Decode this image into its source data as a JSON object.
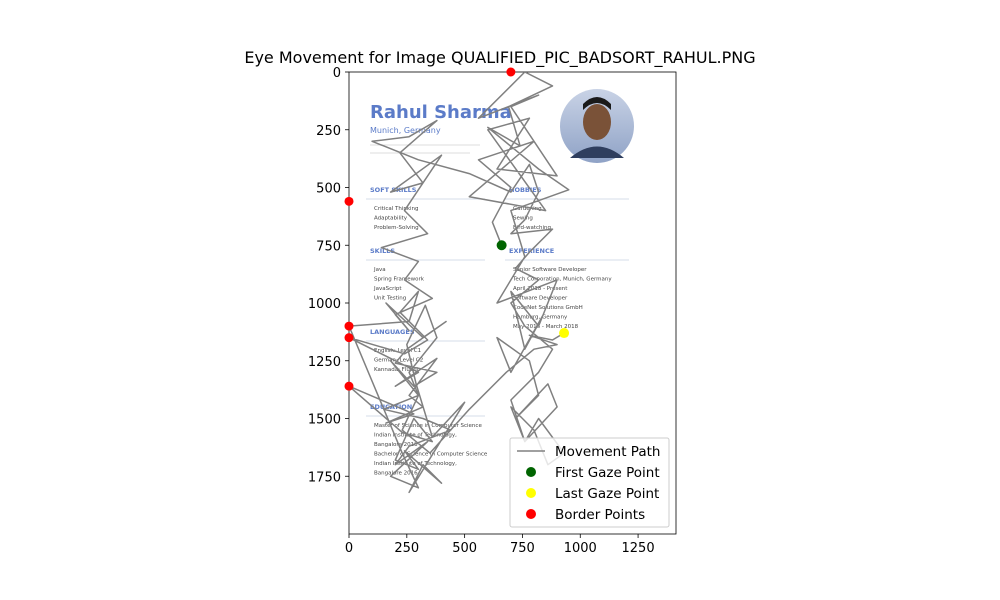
{
  "chart_data": {
    "type": "scatter",
    "title": "Eye Movement for Image QUALIFIED_PIC_BADSORT_RAHUL.PNG",
    "xlabel": "",
    "ylabel": "",
    "xlim": [
      0,
      1414
    ],
    "ylim": [
      2000,
      0
    ],
    "x_ticks": [
      0,
      250,
      500,
      750,
      1000,
      1250
    ],
    "y_ticks": [
      0,
      250,
      500,
      750,
      1000,
      1250,
      1500,
      1750
    ],
    "grid": false,
    "legend_position": "bottom-right",
    "background_image": {
      "description_name": "resume-image",
      "extent": [
        0,
        1414,
        2000,
        0
      ],
      "name": "Rahul Sharma",
      "location": "Munich, Germany",
      "sections": [
        {
          "title": "SOFT SKILLS",
          "items": [
            "Critical Thinking",
            "Adaptability",
            "Problem-Solving"
          ]
        },
        {
          "title": "SKILLS",
          "items": [
            "Java",
            "Spring Framework",
            "JavaScript",
            "Unit Testing"
          ]
        },
        {
          "title": "LANGUAGES",
          "items": [
            "English: Level C1",
            "German: Level C2",
            "Kannada: Fluent"
          ]
        },
        {
          "title": "EDUCATION",
          "items": [
            "Master of Science in Computer Science",
            "Indian Institute of Technology,",
            "Bangalore 2018",
            "Bachelor of Science in Computer Science",
            "Indian Institute of Technology,",
            "Bangalore 2016"
          ]
        },
        {
          "title": "HOBBIES",
          "items": [
            "Gardening",
            "Sewing",
            "Bird-watching"
          ]
        },
        {
          "title": "EXPERIENCE",
          "items": [
            "Senior Software Developer",
            "Tech Corporation, Munich, Germany",
            "April 2018 - Present",
            "Software Developer",
            "CodeNet Solutions GmbH",
            "Hamburg, Germany",
            "May 2016 - March 2018"
          ]
        }
      ]
    },
    "series": [
      {
        "name": "Movement Path",
        "color": "#808080",
        "x": [
          660,
          620,
          700,
          560,
          800,
          520,
          850,
          600,
          780,
          640,
          900,
          700,
          820,
          560,
          760,
          880,
          690,
          740,
          600,
          820,
          950,
          700,
          760,
          640,
          900,
          820,
          700,
          760,
          840,
          700,
          640,
          780,
          820,
          720,
          860,
          900,
          760,
          700,
          800,
          860,
          930,
          820,
          760,
          700,
          820,
          880,
          760,
          700,
          820,
          720,
          780,
          880,
          700,
          760,
          820,
          780,
          700,
          520,
          300,
          100,
          260,
          380,
          220,
          320,
          180,
          400,
          240,
          340,
          140,
          300,
          240,
          360,
          200,
          260,
          160,
          320,
          420,
          250,
          200,
          380,
          280,
          180,
          300,
          150,
          320,
          440,
          260,
          200,
          340,
          180,
          300,
          230,
          0,
          260,
          300,
          220,
          340,
          240,
          0,
          300,
          200,
          380,
          260,
          320,
          160,
          280,
          0,
          230,
          360,
          280,
          200,
          300,
          240,
          400,
          320,
          260,
          500,
          360,
          290,
          250,
          330,
          380,
          260,
          300,
          230,
          350,
          520,
          680,
          800,
          900,
          780,
          880,
          930
        ],
        "y": [
          750,
          650,
          500,
          380,
          300,
          540,
          600,
          250,
          200,
          420,
          450,
          150,
          100,
          200,
          0,
          60,
          150,
          320,
          240,
          420,
          510,
          600,
          800,
          1000,
          900,
          1100,
          950,
          1200,
          1050,
          1300,
          1150,
          1250,
          1400,
          1500,
          1350,
          1450,
          1600,
          1450,
          1550,
          1700,
          1650,
          1500,
          1600,
          1420,
          1300,
          1200,
          1100,
          1000,
          900,
          850,
          780,
          680,
          700,
          640,
          520,
          400,
          520,
          440,
          380,
          300,
          280,
          210,
          350,
          480,
          520,
          360,
          600,
          700,
          760,
          820,
          900,
          980,
          1050,
          1120,
          1000,
          1150,
          1080,
          1200,
          1260,
          1300,
          1360,
          1250,
          1400,
          1460,
          1500,
          1550,
          1620,
          1700,
          1600,
          1750,
          1800,
          1650,
          1100,
          1080,
          950,
          1040,
          1160,
          1220,
          1150,
          1300,
          1360,
          1240,
          1400,
          1450,
          1520,
          1480,
          1360,
          1560,
          1600,
          1500,
          1680,
          1720,
          1640,
          1780,
          1700,
          1820,
          1430,
          1580,
          1350,
          1180,
          1010,
          1150,
          1300,
          1400,
          1550,
          1650,
          1460,
          1300,
          1200,
          1180,
          1140,
          1160,
          1130
        ]
      }
    ],
    "first_gaze": {
      "name": "First Gaze Point",
      "color": "#006400",
      "x": 660,
      "y": 750
    },
    "last_gaze": {
      "name": "Last Gaze Point",
      "color": "#ffff00",
      "x": 930,
      "y": 1130
    },
    "border_points": {
      "name": "Border Points",
      "color": "#ff0000",
      "points": [
        [
          700,
          0
        ],
        [
          0,
          560
        ],
        [
          0,
          1100
        ],
        [
          0,
          1150
        ],
        [
          0,
          1360
        ]
      ]
    }
  }
}
